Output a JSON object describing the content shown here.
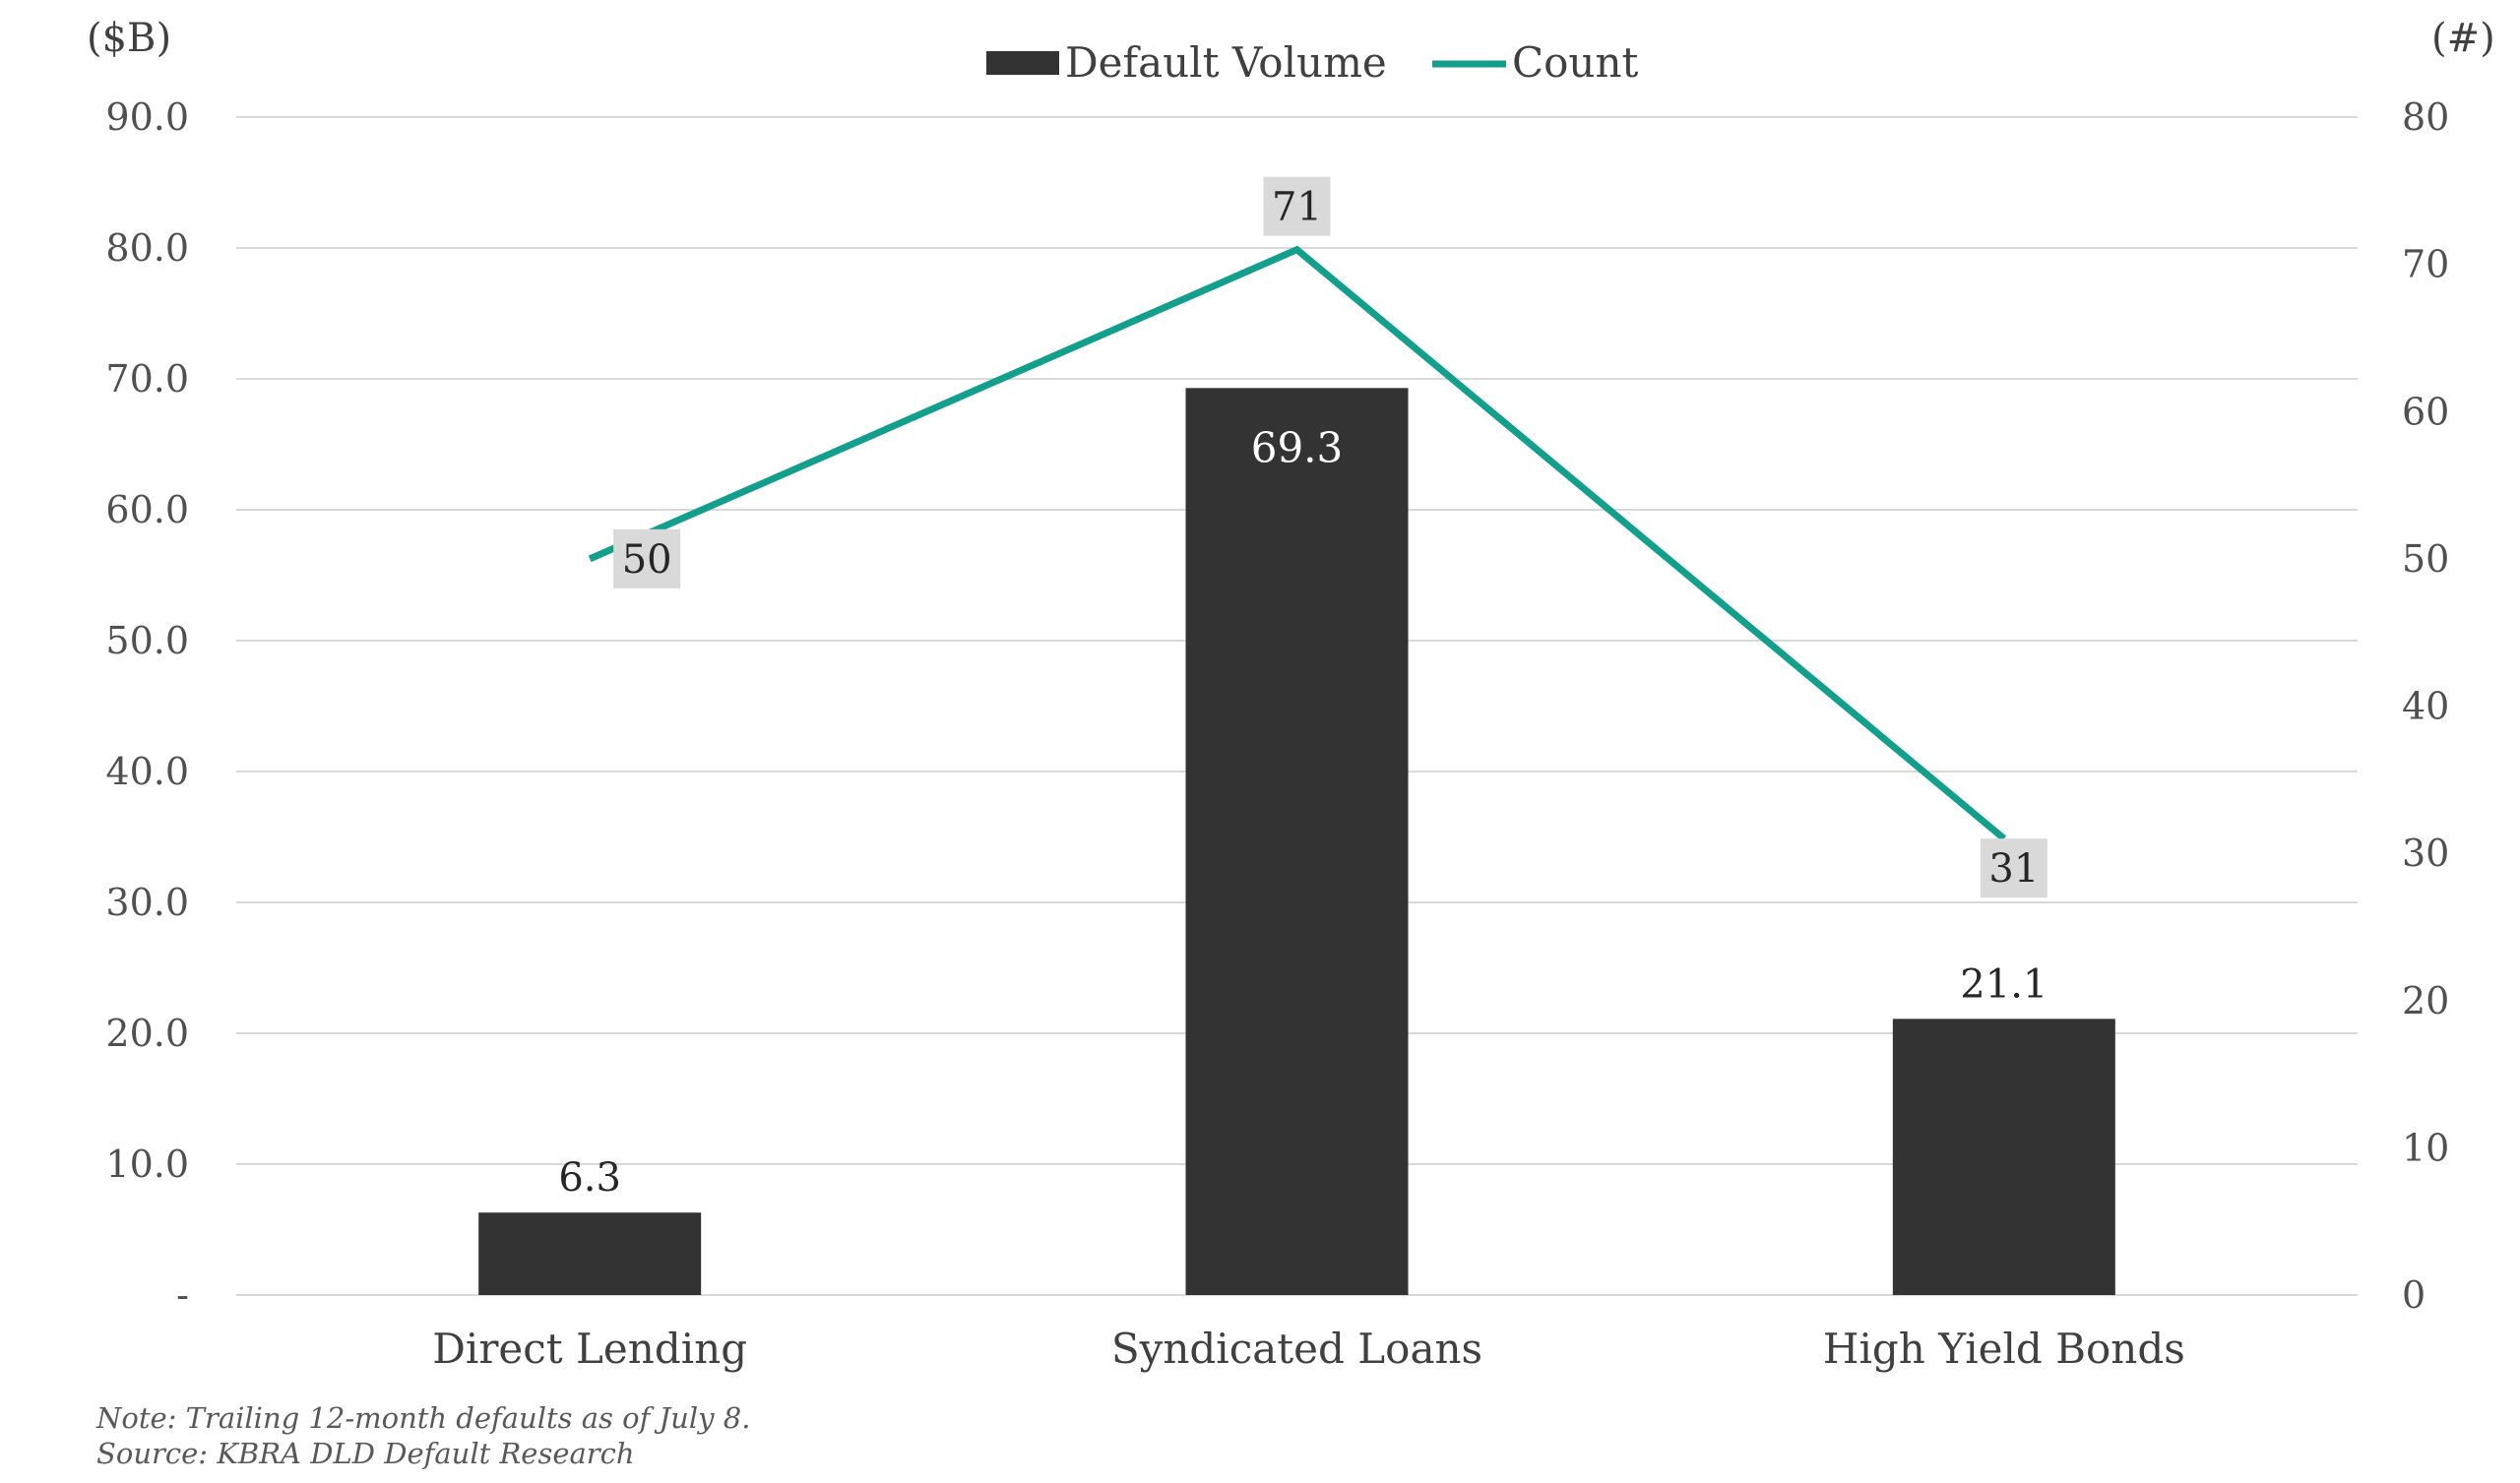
{
  "chart_data": {
    "type": "bar",
    "categories": [
      "Direct Lending",
      "Syndicated Loans",
      "High Yield Bonds"
    ],
    "series": [
      {
        "name": "Default Volume",
        "type": "bar",
        "axis": "left",
        "values": [
          6.3,
          69.3,
          21.1
        ],
        "data_labels": [
          "6.3",
          "69.3",
          "21.1"
        ],
        "color": "#333333"
      },
      {
        "name": "Count",
        "type": "line",
        "axis": "right",
        "values": [
          50,
          71,
          31
        ],
        "data_labels": [
          "50",
          "71",
          "31"
        ],
        "color": "#12A08C"
      }
    ],
    "y_left": {
      "unit_label": "($B)",
      "range": [
        0,
        90
      ],
      "ticks": [
        0,
        10,
        20,
        30,
        40,
        50,
        60,
        70,
        80,
        90
      ],
      "tick_labels": [
        "-",
        "10.0",
        "20.0",
        "30.0",
        "40.0",
        "50.0",
        "60.0",
        "70.0",
        "80.0",
        "90.0"
      ]
    },
    "y_right": {
      "unit_label": "(#)",
      "range": [
        0,
        80
      ],
      "ticks": [
        0,
        10,
        20,
        30,
        40,
        50,
        60,
        70,
        80
      ],
      "tick_labels": [
        "0",
        "10",
        "20",
        "30",
        "40",
        "50",
        "60",
        "70",
        "80"
      ]
    },
    "grid": true,
    "legend_position": "top-center",
    "title": ""
  },
  "notes": [
    "Note: Trailing 12-month defaults as of July 8.",
    "Source: KBRA DLD Default Research"
  ],
  "colors": {
    "bar": "#333333",
    "line": "#12A08C",
    "grid": "#d9d9d9",
    "point_label_bg": "#d9d9d9"
  }
}
